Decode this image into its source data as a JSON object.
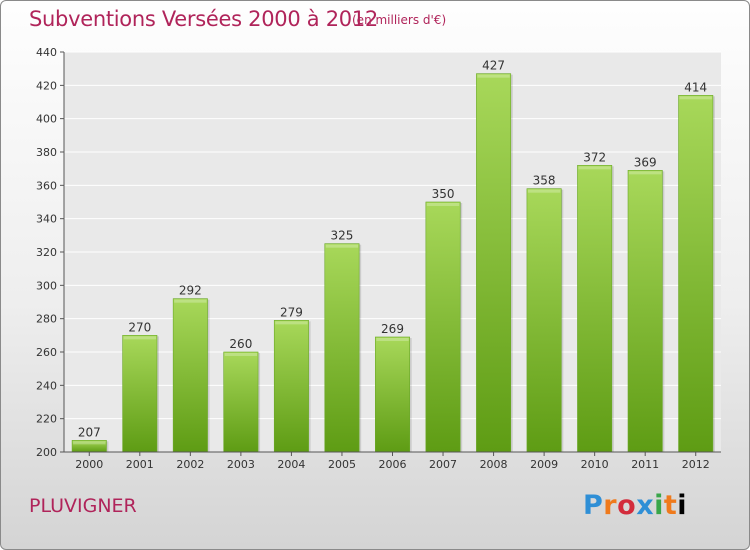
{
  "header": {
    "title": "Subventions Versées 2000 à 2012",
    "subtitle": "(en milliers d'€)"
  },
  "footer": {
    "commune": "PLUVIGNER",
    "logo_text": "Proxiti"
  },
  "colors": {
    "title": "#b0245a",
    "bar_light": "#a8d85a",
    "bar_dark": "#5e9c14",
    "grid": "#ffffff"
  },
  "chart_data": {
    "type": "bar",
    "title": "Subventions Versées 2000 à 2012",
    "subtitle": "(en milliers d'€)",
    "categories": [
      "2000",
      "2001",
      "2002",
      "2003",
      "2004",
      "2005",
      "2006",
      "2007",
      "2008",
      "2009",
      "2010",
      "2011",
      "2012"
    ],
    "values": [
      207,
      270,
      292,
      260,
      279,
      325,
      269,
      350,
      427,
      358,
      372,
      369,
      414
    ],
    "ylim": [
      200,
      440
    ],
    "yticks": [
      200,
      220,
      240,
      260,
      280,
      300,
      320,
      340,
      360,
      380,
      400,
      420,
      440
    ],
    "grid": true,
    "data_labels": true
  }
}
